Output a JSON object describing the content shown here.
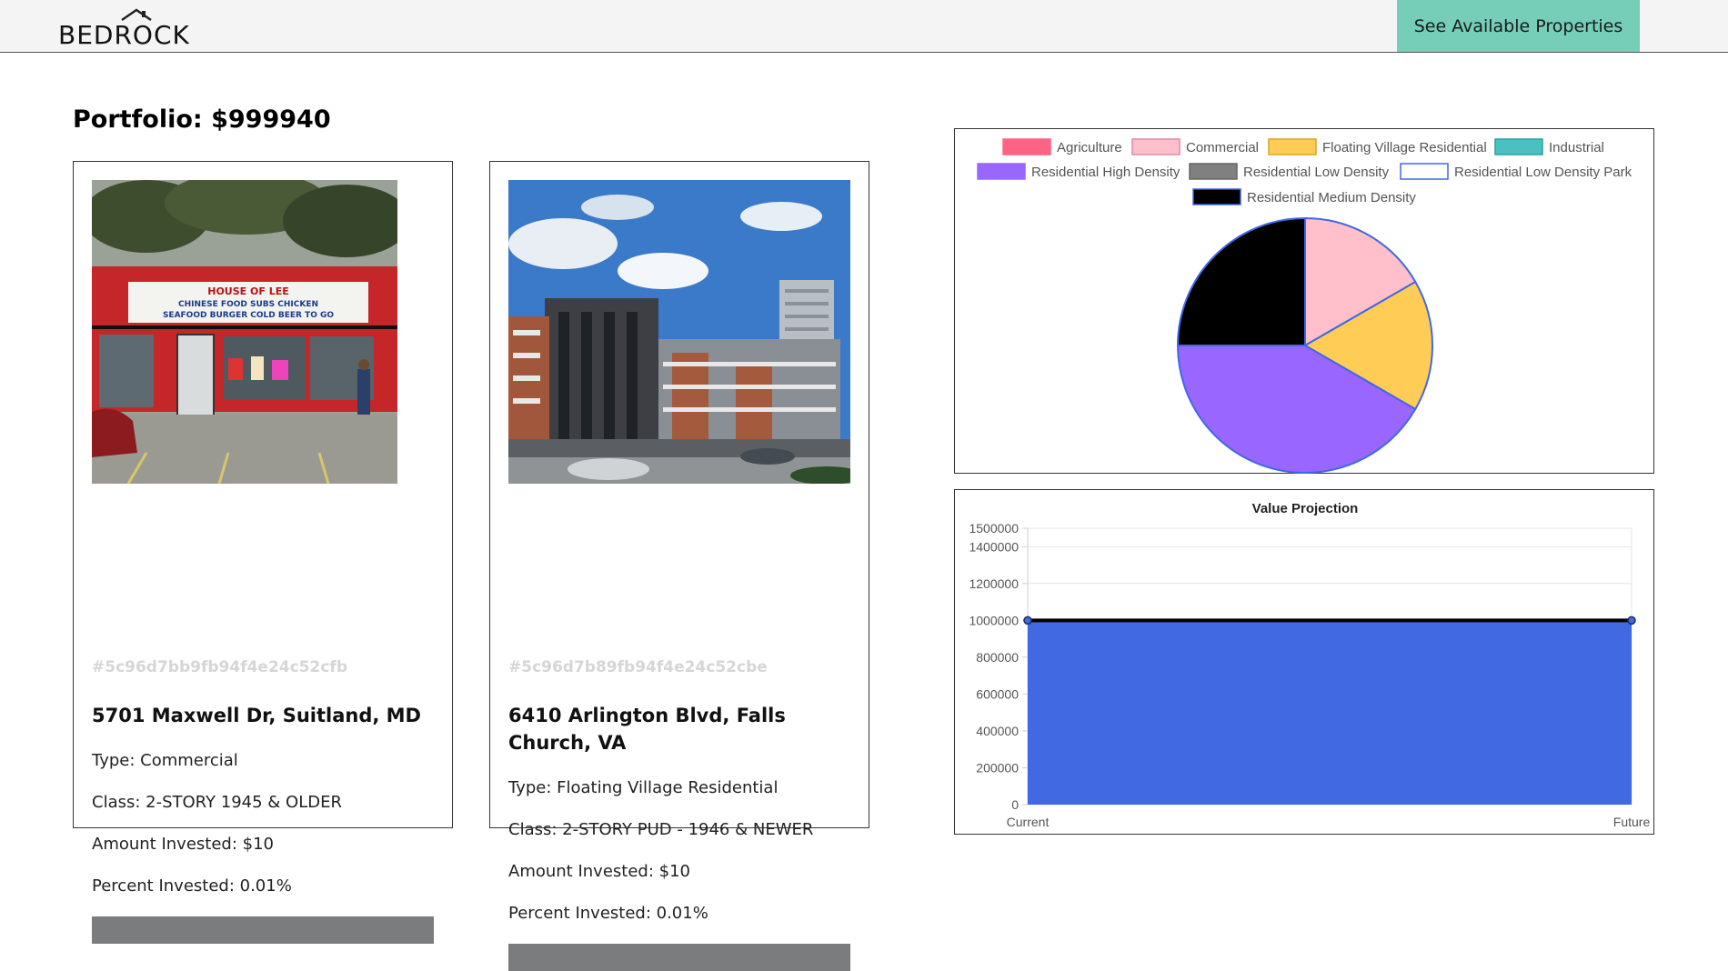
{
  "header": {
    "logo_text": "BEDROCK",
    "cta_label": "See Available Properties",
    "cta_color": "#76cdb8"
  },
  "portfolio": {
    "title": "Portfolio: $999940"
  },
  "properties": [
    {
      "id": "#5c96d7bb9fb94f4e24c52cfb",
      "address": "5701 Maxwell Dr, Suitland, MD",
      "type": "Type: Commercial",
      "class": "Class: 2-STORY 1945 & OLDER",
      "amount": "Amount Invested: $10",
      "percent": "Percent Invested: 0.01%",
      "percent_fraction": 0.0001
    },
    {
      "id": "#5c96d7b89fb94f4e24c52cbe",
      "address": "6410 Arlington Blvd, Falls Church, VA",
      "type": "Type: Floating Village Residential",
      "class": "Class: 2-STORY PUD - 1946 & NEWER",
      "amount": "Amount Invested: $10",
      "percent": "Percent Invested: 0.01%",
      "percent_fraction": 0.0001
    }
  ],
  "chart_data": [
    {
      "type": "pie",
      "title": "",
      "legend_position": "top",
      "legend": [
        {
          "label": "Agriculture",
          "color": "#ff6384",
          "value": 0
        },
        {
          "label": "Commercial",
          "color": "#ffc0cb",
          "value": 1
        },
        {
          "label": "Floating Village Residential",
          "color": "#ffcd56",
          "value": 1
        },
        {
          "label": "Industrial",
          "color": "#4bc0c0",
          "value": 0
        },
        {
          "label": "Residential High Density",
          "color": "#9966ff",
          "value": 2.5
        },
        {
          "label": "Residential Low Density",
          "color": "#808080",
          "value": 0
        },
        {
          "label": "Residential Low Density Park",
          "color": "#ffffff",
          "value": 0
        },
        {
          "label": "Residential Medium Density",
          "color": "#000000",
          "value": 1.5
        }
      ],
      "border_color": "#4169e1"
    },
    {
      "type": "area",
      "title": "Value Projection",
      "categories": [
        "Current",
        "Future"
      ],
      "series": [
        {
          "values": [
            999940,
            999940
          ],
          "fill": "#4169e1",
          "line": "#000000"
        }
      ],
      "yticks": [
        0,
        200000,
        400000,
        600000,
        800000,
        1000000,
        1200000,
        1400000,
        1500000
      ],
      "ylim": [
        0,
        1500000
      ],
      "grid": true
    }
  ]
}
